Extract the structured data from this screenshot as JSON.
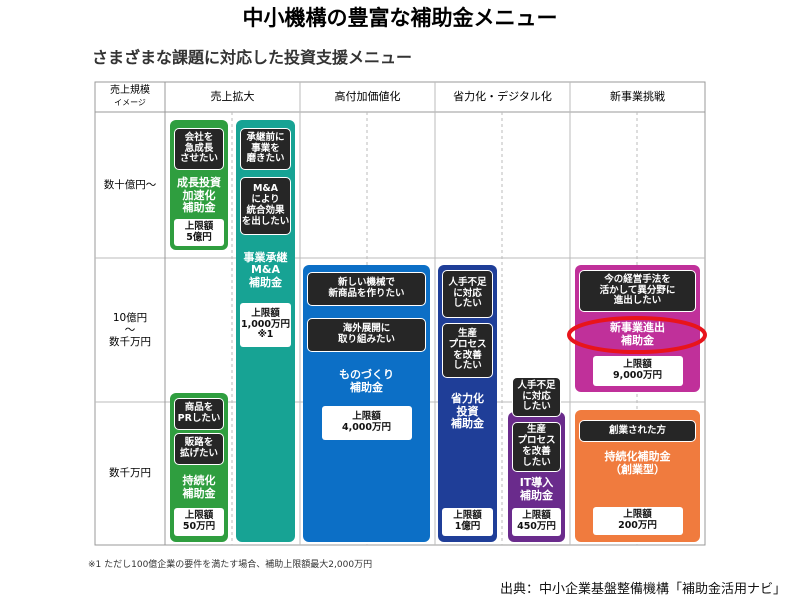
{
  "title": "中小機構の豊富な補助金メニュー",
  "subtitle": "さまざまな課題に対応した投資支援メニュー",
  "table": {
    "corner": {
      "main": "売上規模",
      "sub": "イメージ"
    },
    "columns": [
      "売上拡大",
      "高付加価値化",
      "省力化・デジタル化",
      "新事業挑戦"
    ],
    "rows": [
      "数十億円～",
      "10億円\n～\n数千万円",
      "数千万円"
    ]
  },
  "programs": [
    {
      "name": "成長投資\n加速化\n補助金",
      "needs": [
        "会社を\n急成長\nさせたい"
      ],
      "limit_label": "上限額",
      "limit": "5億円"
    },
    {
      "name": "事業承継\nM&A\n補助金",
      "needs": [
        "承継前に\n事業を\n磨きたい",
        "M&A\nにより\n統合効果\nを出したい"
      ],
      "limit_label": "上限額",
      "limit": "1,000万円",
      "note": "※1"
    },
    {
      "name": "持続化\n補助金",
      "needs": [
        "商品を\nPRしたい",
        "販路を\n拡げたい"
      ],
      "limit_label": "上限額",
      "limit": "50万円"
    },
    {
      "name": "ものづくり\n補助金",
      "needs": [
        "新しい機械で\n新商品を作りたい",
        "海外展開に\n取り組みたい"
      ],
      "limit_label": "上限額",
      "limit": "4,000万円"
    },
    {
      "name": "省力化\n投資\n補助金",
      "needs": [
        "人手不足\nに対応\nしたい",
        "生産\nプロセス\nを改善\nしたい"
      ],
      "limit_label": "上限額",
      "limit": "1億円"
    },
    {
      "name": "IT導入\n補助金",
      "needs": [
        "人手不足\nに対応\nしたい",
        "生産\nプロセス\nを改善\nしたい"
      ],
      "limit_label": "上限額",
      "limit": "450万円"
    },
    {
      "name": "新事業進出\n補助金",
      "needs": [
        "今の経営手法を\n活かして異分野に\n進出したい"
      ],
      "limit_label": "上限額",
      "limit": "9,000万円"
    },
    {
      "name": "持続化補助金\n（創業型）",
      "needs": [
        "創業された方"
      ],
      "limit_label": "上限額",
      "limit": "200万円"
    }
  ],
  "footnote": "※1 ただし100億企業の要件を満たす場合、補助上限額最大2,000万円",
  "source": "出典：中小企業基盤整備機構「補助金活用ナビ」"
}
